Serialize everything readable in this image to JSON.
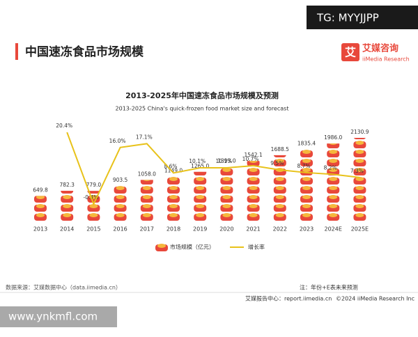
{
  "header": {
    "title": "中国速冻食品市场规模",
    "logo": "艾媒咨询",
    "logo_en": "iiMedia Research",
    "watermark": "TG: MYYJJPP"
  },
  "chart_data": {
    "type": "bar",
    "title": "2013-2025年中国速冻食品市场规模及预测",
    "subtitle": "2013-2025 China's quick-frozen food market size and forecast",
    "categories": [
      "2013",
      "2014",
      "2015",
      "2016",
      "2017",
      "2018",
      "2019",
      "2020",
      "2021",
      "2022",
      "2023",
      "2024E",
      "2025E"
    ],
    "series": [
      {
        "name": "市场规模（亿元）",
        "type": "bar",
        "color": "#e8483b",
        "values": [
          649.8,
          782.3,
          779.0,
          903.5,
          1058.0,
          1149.0,
          1265.0,
          1393.0,
          1542.1,
          1688.5,
          1835.4,
          1986.0,
          2130.9
        ],
        "value_labels": [
          "649.8",
          "782.3",
          "779.0",
          "903.5",
          "1058.0",
          "1149.0",
          "1265.0",
          "1393.0",
          "1542.1",
          "1688.5",
          "1835.4",
          "1986.0",
          "2130.9"
        ]
      },
      {
        "name": "增长率",
        "type": "line",
        "color": "#e8c21a",
        "values": [
          null,
          20.4,
          -0.4,
          16.0,
          17.1,
          8.6,
          10.1,
          10.1,
          10.7,
          9.5,
          8.7,
          8.2,
          7.3
        ],
        "value_labels": [
          null,
          "20.4%",
          "-0.4%",
          "16.0%",
          "17.1%",
          "8.6%",
          "10.1%",
          "10.1%",
          "10.7%",
          "9.5%",
          "8.7%",
          "8.2%",
          "7.3%"
        ]
      }
    ]
  },
  "footer": {
    "source": "数据来源：艾媒数据中心（data.iimedia.cn）",
    "note": "注：年份+E表未来预测",
    "report": "艾媒报告中心：report.iimedia.cn",
    "copyright": "©2024 iiMedia Research Inc",
    "watermark": "www.ynkmfl.com"
  }
}
